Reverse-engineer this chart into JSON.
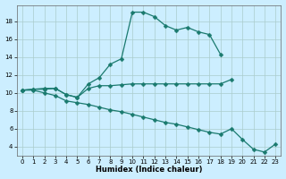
{
  "xlabel": "Humidex (Indice chaleur)",
  "background_color": "#cceeff",
  "grid_color": "#aacccc",
  "line_color": "#1a7a6e",
  "xlim": [
    -0.5,
    23.5
  ],
  "ylim": [
    3.0,
    19.8
  ],
  "xticks": [
    0,
    1,
    2,
    3,
    4,
    5,
    6,
    7,
    8,
    9,
    10,
    11,
    12,
    13,
    14,
    15,
    16,
    17,
    18,
    19,
    20,
    21,
    22,
    23
  ],
  "yticks": [
    4,
    6,
    8,
    10,
    12,
    14,
    16,
    18
  ],
  "line_upper_x": [
    0,
    1,
    2,
    3,
    4,
    5,
    6,
    7,
    8,
    9,
    10,
    11,
    12,
    13,
    14,
    15,
    16,
    17,
    18
  ],
  "line_upper_y": [
    10.3,
    10.4,
    10.5,
    10.5,
    9.8,
    9.5,
    11.0,
    11.7,
    13.2,
    13.8,
    19.0,
    19.0,
    18.5,
    17.5,
    17.0,
    17.3,
    16.8,
    16.5,
    14.3
  ],
  "line_mid_x": [
    0,
    1,
    2,
    3,
    4,
    5,
    6,
    7,
    8,
    9,
    10,
    11,
    12,
    13,
    14,
    15,
    16,
    17,
    18,
    19
  ],
  "line_mid_y": [
    10.3,
    10.4,
    10.4,
    10.5,
    9.8,
    9.5,
    10.5,
    10.8,
    10.8,
    10.9,
    11.0,
    11.0,
    11.0,
    11.0,
    11.0,
    11.0,
    11.0,
    11.0,
    11.0,
    11.5
  ],
  "line_lower_x": [
    0,
    1,
    2,
    3,
    4,
    5,
    6,
    7,
    8,
    9,
    10,
    11,
    12,
    13,
    14,
    15,
    16,
    17,
    18,
    19,
    20,
    21,
    22,
    23
  ],
  "line_lower_y": [
    10.3,
    10.3,
    10.0,
    9.7,
    9.1,
    8.9,
    8.7,
    8.4,
    8.1,
    7.9,
    7.6,
    7.3,
    7.0,
    6.7,
    6.5,
    6.2,
    5.9,
    5.6,
    5.4,
    6.0,
    4.8,
    3.7,
    3.4,
    4.3
  ],
  "marker": "D",
  "markersize": 2.5,
  "linewidth": 0.9
}
